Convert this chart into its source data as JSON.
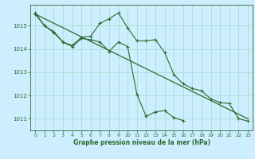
{
  "background_color": "#cceeff",
  "grid_color": "#aaddcc",
  "line_color": "#2d6a2d",
  "title": "Graphe pression niveau de la mer (hPa)",
  "xlim": [
    -0.5,
    23.5
  ],
  "ylim": [
    1010.5,
    1015.9
  ],
  "yticks": [
    1011,
    1012,
    1013,
    1014,
    1015
  ],
  "xticks": [
    0,
    1,
    2,
    3,
    4,
    5,
    6,
    7,
    8,
    9,
    10,
    11,
    12,
    13,
    14,
    15,
    16,
    17,
    18,
    19,
    20,
    21,
    22,
    23
  ],
  "series1_x": [
    0,
    1,
    2,
    3,
    4,
    5,
    6,
    7,
    8,
    9,
    10,
    11,
    12,
    13,
    14,
    15,
    16,
    17,
    18,
    19,
    20,
    21,
    22,
    23
  ],
  "series1_y": [
    1015.55,
    1015.0,
    1014.75,
    1014.3,
    1014.15,
    1014.5,
    1014.55,
    1015.1,
    1015.3,
    1015.55,
    1014.9,
    1014.35,
    1014.35,
    1014.4,
    1013.85,
    1012.9,
    1012.5,
    1012.3,
    1012.2,
    1011.85,
    1011.7,
    1011.65,
    1011.0,
    1010.9
  ],
  "series2_x": [
    0,
    1,
    2,
    3,
    4,
    5,
    6,
    7,
    8,
    9,
    10,
    11,
    12,
    13,
    14,
    15,
    16
  ],
  "series2_y": [
    1015.5,
    1015.0,
    1014.7,
    1014.3,
    1014.1,
    1014.45,
    1014.4,
    1014.3,
    1013.9,
    1014.3,
    1014.1,
    1012.05,
    1011.1,
    1011.3,
    1011.35,
    1011.05,
    1010.92
  ],
  "trend_x": [
    0,
    23
  ],
  "trend_y": [
    1015.5,
    1011.0
  ]
}
